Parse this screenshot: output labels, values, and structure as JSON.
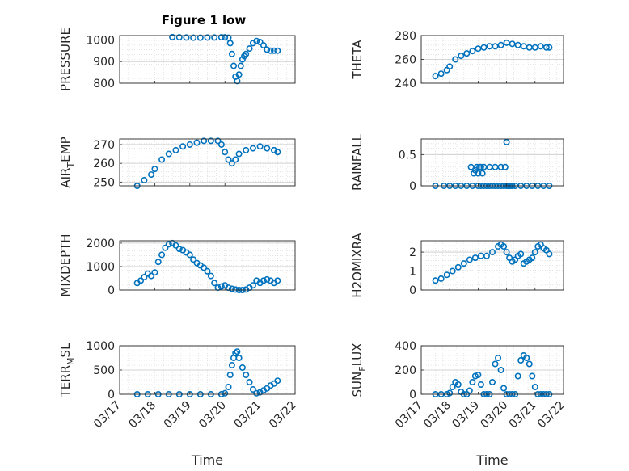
{
  "figure": {
    "title": "Figure 1 low"
  },
  "colors": {
    "marker": "#0072BD",
    "grid": "#d4d4d4",
    "axis": "#262626"
  },
  "chart_data": [
    {
      "type": "scatter",
      "ylabel": "PRESSURE",
      "ylabel_sub": "",
      "ylabel_tail": "",
      "ylim": [
        800,
        1020
      ],
      "yticks": [
        800,
        900,
        1000
      ],
      "xlim": [
        "03/17",
        "03/22"
      ],
      "xticks": [
        "03/17",
        "03/18",
        "03/19",
        "03/20",
        "03/21",
        "03/22"
      ],
      "xlabel": "",
      "grid": true,
      "series": [
        {
          "x": [
            1.5,
            1.7,
            1.9,
            2.1,
            2.3,
            2.5,
            2.7,
            2.9,
            3.0,
            3.1,
            3.15,
            3.2,
            3.25,
            3.3,
            3.35,
            3.4,
            3.45,
            3.5,
            3.55,
            3.6,
            3.7,
            3.8,
            3.9,
            4.0,
            4.1,
            4.2,
            4.3,
            4.4,
            4.5
          ],
          "y": [
            1013,
            1012,
            1011,
            1010,
            1010,
            1011,
            1011,
            1012,
            1012,
            1010,
            985,
            935,
            880,
            830,
            810,
            840,
            880,
            910,
            925,
            935,
            960,
            985,
            995,
            990,
            975,
            955,
            950,
            950,
            950
          ]
        }
      ]
    },
    {
      "type": "scatter",
      "ylabel": "THETA",
      "ylabel_sub": "",
      "ylabel_tail": "",
      "ylim": [
        240,
        280
      ],
      "yticks": [
        240,
        260,
        280
      ],
      "xlim": [
        "03/17",
        "03/22"
      ],
      "xticks": [
        "03/17",
        "03/18",
        "03/19",
        "03/20",
        "03/21",
        "03/22"
      ],
      "xlabel": "",
      "grid": true,
      "series": [
        {
          "x": [
            0.5,
            0.7,
            0.9,
            1.0,
            1.2,
            1.4,
            1.6,
            1.8,
            2.0,
            2.2,
            2.4,
            2.6,
            2.8,
            3.0,
            3.2,
            3.4,
            3.6,
            3.8,
            4.0,
            4.2,
            4.4,
            4.5
          ],
          "y": [
            246,
            248,
            251,
            254,
            260,
            263,
            265,
            267,
            269,
            270,
            271,
            271,
            272,
            274,
            273,
            272,
            271,
            270,
            270,
            271,
            270,
            270
          ]
        }
      ]
    },
    {
      "type": "scatter",
      "ylabel": "AIR",
      "ylabel_sub": "T",
      "ylabel_tail": "EMP",
      "ylim": [
        248,
        273
      ],
      "yticks": [
        250,
        260,
        270
      ],
      "xlim": [
        "03/17",
        "03/22"
      ],
      "xticks": [
        "03/17",
        "03/18",
        "03/19",
        "03/20",
        "03/21",
        "03/22"
      ],
      "xlabel": "",
      "grid": true,
      "series": [
        {
          "x": [
            0.5,
            0.7,
            0.9,
            1.0,
            1.2,
            1.4,
            1.6,
            1.8,
            2.0,
            2.2,
            2.4,
            2.6,
            2.8,
            2.9,
            3.0,
            3.1,
            3.2,
            3.3,
            3.4,
            3.6,
            3.8,
            4.0,
            4.2,
            4.4,
            4.5
          ],
          "y": [
            248,
            251,
            254,
            257,
            262,
            265,
            267,
            269,
            270,
            271,
            272,
            272,
            272,
            270,
            266,
            262,
            260,
            262,
            265,
            267,
            268,
            269,
            268,
            267,
            266
          ]
        }
      ]
    },
    {
      "type": "scatter",
      "ylabel": "RAINFALL",
      "ylabel_sub": "",
      "ylabel_tail": "",
      "ylim": [
        0,
        0.75
      ],
      "yticks": [
        0,
        0.5
      ],
      "xlim": [
        "03/17",
        "03/22"
      ],
      "xticks": [
        "03/17",
        "03/18",
        "03/19",
        "03/20",
        "03/21",
        "03/22"
      ],
      "xlabel": "",
      "grid": true,
      "series": [
        {
          "x": [
            0.5,
            0.8,
            1.0,
            1.2,
            1.4,
            1.6,
            1.8,
            2.0,
            2.1,
            2.2,
            2.3,
            2.4,
            2.5,
            2.6,
            2.7,
            2.8,
            2.9,
            3.0,
            3.05,
            3.1,
            3.15,
            3.2,
            3.3,
            3.5,
            3.7,
            3.9,
            4.1,
            4.3,
            4.5,
            1.75,
            1.85,
            1.9,
            1.95,
            2.0,
            2.05,
            2.1,
            2.15,
            2.2,
            2.4,
            2.6,
            2.8,
            2.95,
            3.0
          ],
          "y": [
            0,
            0,
            0,
            0,
            0,
            0,
            0,
            0,
            0,
            0,
            0,
            0,
            0,
            0,
            0,
            0,
            0,
            0,
            0,
            0,
            0,
            0,
            0,
            0,
            0,
            0,
            0,
            0,
            0,
            0.3,
            0.2,
            0.25,
            0.3,
            0.2,
            0.3,
            0.3,
            0.2,
            0.3,
            0.3,
            0.3,
            0.3,
            0.3,
            0.7
          ]
        }
      ]
    },
    {
      "type": "scatter",
      "ylabel": "MIXDEPTH",
      "ylabel_sub": "",
      "ylabel_tail": "",
      "ylim": [
        0,
        2100
      ],
      "yticks": [
        0,
        1000,
        2000
      ],
      "xlim": [
        "03/17",
        "03/22"
      ],
      "xticks": [
        "03/17",
        "03/18",
        "03/19",
        "03/20",
        "03/21",
        "03/22"
      ],
      "xlabel": "",
      "grid": true,
      "series": [
        {
          "x": [
            0.5,
            0.6,
            0.7,
            0.8,
            0.9,
            1.0,
            1.1,
            1.2,
            1.3,
            1.4,
            1.5,
            1.6,
            1.7,
            1.8,
            1.9,
            2.0,
            2.1,
            2.2,
            2.3,
            2.4,
            2.5,
            2.6,
            2.7,
            2.8,
            2.9,
            3.0,
            3.1,
            3.2,
            3.3,
            3.4,
            3.5,
            3.6,
            3.7,
            3.8,
            3.9,
            4.0,
            4.1,
            4.2,
            4.3,
            4.4,
            4.5
          ],
          "y": [
            300,
            400,
            550,
            700,
            600,
            750,
            1200,
            1500,
            1800,
            1950,
            2000,
            1900,
            1750,
            1700,
            1600,
            1500,
            1300,
            1150,
            1050,
            950,
            800,
            600,
            300,
            100,
            150,
            200,
            100,
            50,
            20,
            0,
            0,
            20,
            100,
            200,
            400,
            300,
            400,
            450,
            400,
            300,
            400
          ]
        }
      ]
    },
    {
      "type": "scatter",
      "ylabel": "H2OMIXRA",
      "ylabel_sub": "",
      "ylabel_tail": "",
      "ylim": [
        0,
        2.6
      ],
      "yticks": [
        0,
        1,
        2
      ],
      "xlim": [
        "03/17",
        "03/22"
      ],
      "xticks": [
        "03/17",
        "03/18",
        "03/19",
        "03/20",
        "03/21",
        "03/22"
      ],
      "xlabel": "",
      "grid": true,
      "series": [
        {
          "x": [
            0.5,
            0.7,
            0.9,
            1.1,
            1.3,
            1.5,
            1.7,
            1.9,
            2.1,
            2.3,
            2.5,
            2.7,
            2.8,
            2.9,
            3.0,
            3.1,
            3.2,
            3.3,
            3.4,
            3.5,
            3.6,
            3.7,
            3.8,
            3.9,
            4.0,
            4.1,
            4.2,
            4.3,
            4.4,
            4.5
          ],
          "y": [
            0.5,
            0.6,
            0.8,
            1.0,
            1.2,
            1.4,
            1.6,
            1.7,
            1.8,
            1.8,
            2.0,
            2.3,
            2.4,
            2.3,
            2.0,
            1.7,
            1.5,
            1.6,
            1.8,
            1.9,
            1.4,
            1.5,
            1.6,
            1.7,
            2.0,
            2.3,
            2.4,
            2.2,
            2.1,
            1.9
          ]
        }
      ]
    },
    {
      "type": "scatter",
      "ylabel": "TERR",
      "ylabel_sub": "M",
      "ylabel_tail": "SL",
      "ylim": [
        0,
        1000
      ],
      "yticks": [
        0,
        500,
        1000
      ],
      "xlim": [
        "03/17",
        "03/22"
      ],
      "xticks": [
        "03/17",
        "03/18",
        "03/19",
        "03/20",
        "03/21",
        "03/22"
      ],
      "xlabel": "Time",
      "grid": true,
      "series": [
        {
          "x": [
            0.5,
            0.8,
            1.1,
            1.4,
            1.7,
            2.0,
            2.3,
            2.6,
            2.9,
            3.0,
            3.1,
            3.15,
            3.2,
            3.25,
            3.3,
            3.35,
            3.4,
            3.5,
            3.6,
            3.7,
            3.8,
            3.9,
            4.0,
            4.1,
            4.2,
            4.3,
            4.4,
            4.5
          ],
          "y": [
            0,
            0,
            0,
            0,
            0,
            0,
            0,
            0,
            0,
            20,
            150,
            400,
            600,
            750,
            850,
            880,
            750,
            550,
            400,
            250,
            100,
            20,
            40,
            80,
            120,
            180,
            220,
            280
          ]
        }
      ]
    },
    {
      "type": "scatter",
      "ylabel": "SUN",
      "ylabel_sub": "F",
      "ylabel_tail": "LUX",
      "ylim": [
        0,
        400
      ],
      "yticks": [
        0,
        200,
        400
      ],
      "xlim": [
        "03/17",
        "03/22"
      ],
      "xticks": [
        "03/17",
        "03/18",
        "03/19",
        "03/20",
        "03/21",
        "03/22"
      ],
      "xlabel": "Time",
      "grid": true,
      "series": [
        {
          "x": [
            0.5,
            0.7,
            0.9,
            1.0,
            1.1,
            1.2,
            1.3,
            1.4,
            1.5,
            1.6,
            1.7,
            1.8,
            1.9,
            2.0,
            2.1,
            2.2,
            2.3,
            2.4,
            2.5,
            2.6,
            2.7,
            2.8,
            2.9,
            3.0,
            3.1,
            3.2,
            3.3,
            3.4,
            3.5,
            3.6,
            3.7,
            3.8,
            3.9,
            4.0,
            4.1,
            4.2,
            4.3,
            4.4,
            4.5
          ],
          "y": [
            0,
            0,
            0,
            10,
            60,
            100,
            80,
            20,
            0,
            0,
            30,
            100,
            150,
            160,
            80,
            0,
            0,
            0,
            100,
            250,
            300,
            200,
            50,
            0,
            0,
            0,
            0,
            150,
            280,
            320,
            300,
            250,
            150,
            60,
            0,
            0,
            0,
            0,
            0
          ]
        }
      ]
    }
  ]
}
